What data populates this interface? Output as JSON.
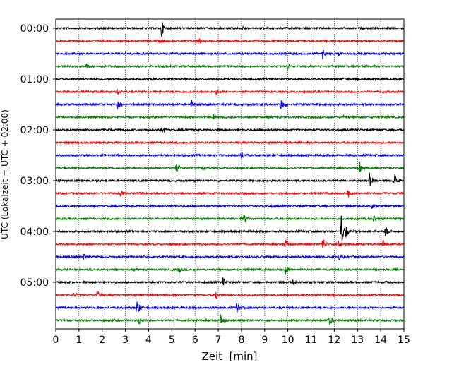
{
  "chart_data": {
    "type": "line",
    "title": "",
    "xlabel": "Zeit  [min]",
    "ylabel": "UTC (Lokalzeit = UTC + 02:00)",
    "xlim": [
      0,
      15
    ],
    "x_ticks": [
      0,
      1,
      2,
      3,
      4,
      5,
      6,
      7,
      8,
      9,
      10,
      11,
      12,
      13,
      14,
      15
    ],
    "x_tick_labels": [
      "0",
      "1",
      "2",
      "3",
      "4",
      "5",
      "6",
      "7",
      "8",
      "9",
      "10",
      "11",
      "12",
      "13",
      "14",
      "15"
    ],
    "y_tick_labels": [
      "00:00",
      "01:00",
      "02:00",
      "03:00",
      "04:00",
      "05:00"
    ],
    "grid": "vertical dotted lines at each minute",
    "traces_per_hour": 4,
    "trace_length_min": 15,
    "color_cycle": [
      "#000000",
      "#ff0000",
      "#0000ff",
      "#008000"
    ],
    "series": [
      {
        "start": "00:00",
        "color": "#000000",
        "events": [
          {
            "t": 4.55,
            "amp": 1.0
          },
          {
            "t": 8.0,
            "amp": 0.2
          }
        ]
      },
      {
        "start": "00:15",
        "color": "#ff0000",
        "events": [
          {
            "t": 6.15,
            "amp": 0.45
          },
          {
            "t": 4.5,
            "amp": 0.15
          }
        ]
      },
      {
        "start": "00:30",
        "color": "#0000ff",
        "events": [
          {
            "t": 11.5,
            "amp": 0.5
          },
          {
            "t": 12.2,
            "amp": 0.25
          }
        ]
      },
      {
        "start": "00:45",
        "color": "#008000",
        "events": [
          {
            "t": 1.3,
            "amp": 0.3
          },
          {
            "t": 10.0,
            "amp": 0.3
          }
        ]
      },
      {
        "start": "01:00",
        "color": "#000000",
        "events": [
          {
            "t": 12.3,
            "amp": 0.15
          }
        ]
      },
      {
        "start": "01:15",
        "color": "#ff0000",
        "events": [
          {
            "t": 2.65,
            "amp": 0.25
          },
          {
            "t": 6.9,
            "amp": 0.25
          },
          {
            "t": 14.0,
            "amp": 0.15
          }
        ]
      },
      {
        "start": "01:30",
        "color": "#0000ff",
        "events": [
          {
            "t": 2.65,
            "amp": 0.7
          },
          {
            "t": 5.85,
            "amp": 0.45
          },
          {
            "t": 9.7,
            "amp": 1.0
          }
        ]
      },
      {
        "start": "01:45",
        "color": "#008000",
        "events": [
          {
            "t": 6.8,
            "amp": 0.3
          },
          {
            "t": 12.4,
            "amp": 0.25
          }
        ]
      },
      {
        "start": "02:00",
        "color": "#000000",
        "events": [
          {
            "t": 4.6,
            "amp": 0.55
          },
          {
            "t": 2.2,
            "amp": 0.2
          },
          {
            "t": 5.6,
            "amp": 0.2
          }
        ]
      },
      {
        "start": "02:15",
        "color": "#ff0000",
        "events": []
      },
      {
        "start": "02:30",
        "color": "#0000ff",
        "events": [
          {
            "t": 8.0,
            "amp": 0.45
          }
        ]
      },
      {
        "start": "02:45",
        "color": "#008000",
        "events": [
          {
            "t": 5.2,
            "amp": 0.55
          },
          {
            "t": 13.1,
            "amp": 0.55
          },
          {
            "t": 6.3,
            "amp": 0.2
          }
        ]
      },
      {
        "start": "03:00",
        "color": "#000000",
        "events": [
          {
            "t": 13.5,
            "amp": 0.9
          },
          {
            "t": 14.6,
            "amp": 0.95
          },
          {
            "t": 0.1,
            "amp": 0.3
          }
        ]
      },
      {
        "start": "03:15",
        "color": "#ff0000",
        "events": [
          {
            "t": 2.8,
            "amp": 0.35
          },
          {
            "t": 12.6,
            "amp": 0.4
          },
          {
            "t": 3.6,
            "amp": 0.15
          }
        ]
      },
      {
        "start": "03:30",
        "color": "#0000ff",
        "events": [
          {
            "t": 13.6,
            "amp": 0.35
          }
        ]
      },
      {
        "start": "03:45",
        "color": "#008000",
        "events": [
          {
            "t": 8.1,
            "amp": 0.6
          },
          {
            "t": 13.7,
            "amp": 0.4
          }
        ]
      },
      {
        "start": "04:00",
        "color": "#000000",
        "events": [
          {
            "t": 12.3,
            "amp": 1.8
          },
          {
            "t": 14.2,
            "amp": 0.6
          },
          {
            "t": 12.5,
            "amp": 0.5
          }
        ]
      },
      {
        "start": "04:15",
        "color": "#ff0000",
        "events": [
          {
            "t": 11.5,
            "amp": 0.8
          },
          {
            "t": 9.9,
            "amp": 0.55
          },
          {
            "t": 14.1,
            "amp": 0.4
          },
          {
            "t": 12.2,
            "amp": 0.6
          }
        ]
      },
      {
        "start": "04:30",
        "color": "#0000ff",
        "events": [
          {
            "t": 1.2,
            "amp": 0.3
          },
          {
            "t": 12.2,
            "amp": 0.4
          }
        ]
      },
      {
        "start": "04:45",
        "color": "#008000",
        "events": [
          {
            "t": 5.3,
            "amp": 0.3
          },
          {
            "t": 9.9,
            "amp": 0.45
          }
        ]
      },
      {
        "start": "05:00",
        "color": "#000000",
        "events": [
          {
            "t": 7.2,
            "amp": 0.45
          },
          {
            "t": 10.2,
            "amp": 0.3
          }
        ]
      },
      {
        "start": "05:15",
        "color": "#ff0000",
        "events": [
          {
            "t": 1.8,
            "amp": 0.5
          },
          {
            "t": 6.9,
            "amp": 0.45
          },
          {
            "t": 0.8,
            "amp": 0.3
          }
        ]
      },
      {
        "start": "05:30",
        "color": "#0000ff",
        "events": [
          {
            "t": 3.5,
            "amp": 1.0
          },
          {
            "t": 7.8,
            "amp": 0.6
          }
        ]
      },
      {
        "start": "05:45",
        "color": "#008000",
        "events": [
          {
            "t": 7.1,
            "amp": 0.9
          },
          {
            "t": 11.8,
            "amp": 0.6
          },
          {
            "t": 3.6,
            "amp": 0.45
          }
        ]
      }
    ]
  }
}
